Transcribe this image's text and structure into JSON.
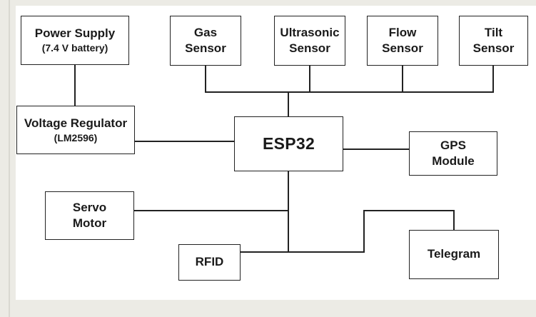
{
  "diagram": {
    "blocks": {
      "power_supply": {
        "line1": "Power Supply",
        "line2": "(7.4 V battery)"
      },
      "gas_sensor": {
        "line1": "Gas",
        "line2": "Sensor"
      },
      "ultrasonic_sensor": {
        "line1": "Ultrasonic",
        "line2": "Sensor"
      },
      "flow_sensor": {
        "line1": "Flow",
        "line2": "Sensor"
      },
      "tilt_sensor": {
        "line1": "Tilt",
        "line2": "Sensor"
      },
      "voltage_regulator": {
        "line1": "Voltage Regulator",
        "line2": "(LM2596)"
      },
      "esp32": {
        "line1": "ESP32"
      },
      "gps_module": {
        "line1": "GPS",
        "line2": "Module"
      },
      "servo_motor": {
        "line1": "Servo",
        "line2": "Motor"
      },
      "rfid": {
        "line1": "RFID"
      },
      "telegram": {
        "line1": "Telegram"
      }
    },
    "colors": {
      "line": "#222222",
      "block_fill": "#ffffff",
      "page_background": "#ecebe5"
    }
  }
}
